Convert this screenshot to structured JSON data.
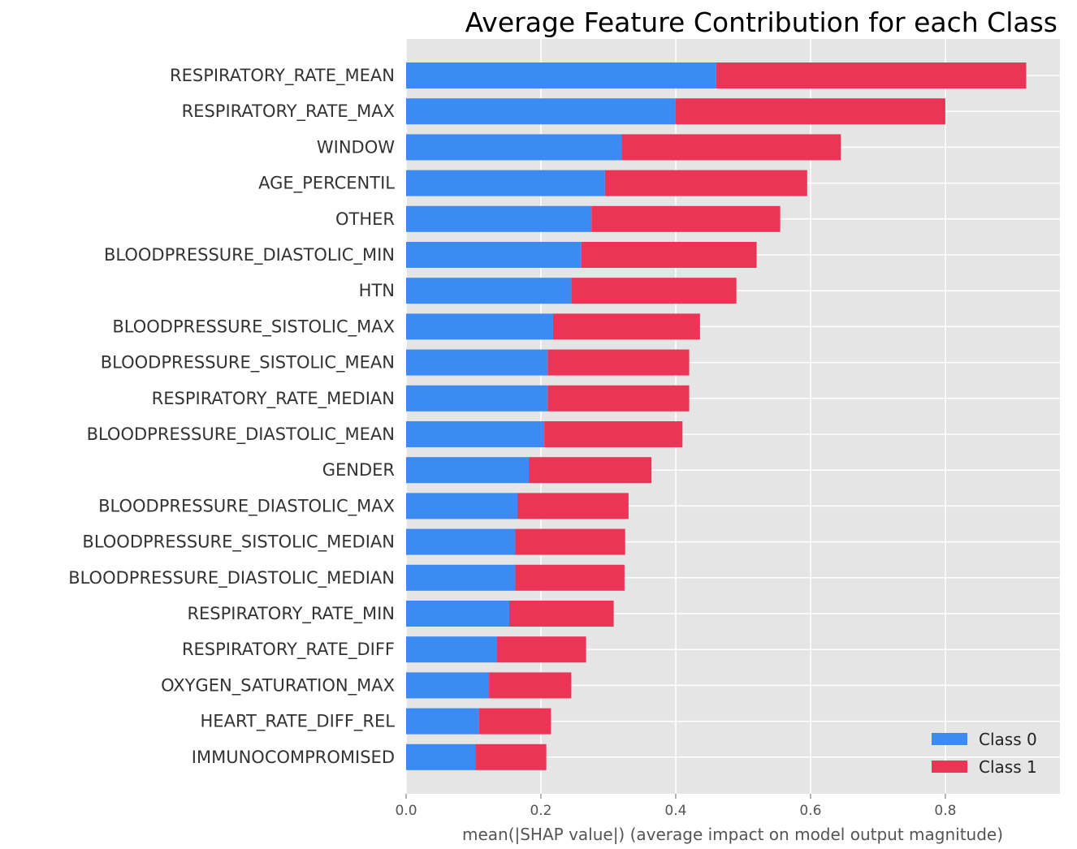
{
  "chart_data": {
    "type": "bar",
    "stacked": true,
    "orientation": "horizontal",
    "title": "Average Feature Contribution for each Class",
    "xlabel": "mean(|SHAP value|) (average impact on model output magnitude)",
    "ylabel": "",
    "xlim": [
      0,
      0.97
    ],
    "xticks": [
      "0.0",
      "0.2",
      "0.4",
      "0.6",
      "0.8"
    ],
    "grid": true,
    "legend_position": "lower-right",
    "categories": [
      "RESPIRATORY_RATE_MEAN",
      "RESPIRATORY_RATE_MAX",
      "WINDOW",
      "AGE_PERCENTIL",
      "OTHER",
      "BLOODPRESSURE_DIASTOLIC_MIN",
      "HTN",
      "BLOODPRESSURE_SISTOLIC_MAX",
      "BLOODPRESSURE_SISTOLIC_MEAN",
      "RESPIRATORY_RATE_MEDIAN",
      "BLOODPRESSURE_DIASTOLIC_MEAN",
      "GENDER",
      "BLOODPRESSURE_DIASTOLIC_MAX",
      "BLOODPRESSURE_SISTOLIC_MEDIAN",
      "BLOODPRESSURE_DIASTOLIC_MEDIAN",
      "RESPIRATORY_RATE_MIN",
      "RESPIRATORY_RATE_DIFF",
      "OXYGEN_SATURATION_MAX",
      "HEART_RATE_DIFF_REL",
      "IMMUNOCOMPROMISED"
    ],
    "series": [
      {
        "name": "Class 0",
        "color": "#3b8bf2",
        "values": [
          0.46,
          0.4,
          0.32,
          0.295,
          0.275,
          0.26,
          0.245,
          0.218,
          0.21,
          0.21,
          0.205,
          0.182,
          0.165,
          0.162,
          0.162,
          0.153,
          0.134,
          0.123,
          0.108,
          0.103
        ]
      },
      {
        "name": "Class 1",
        "color": "#ea3556",
        "values": [
          0.46,
          0.4,
          0.325,
          0.3,
          0.28,
          0.26,
          0.245,
          0.218,
          0.21,
          0.21,
          0.205,
          0.182,
          0.165,
          0.163,
          0.162,
          0.155,
          0.133,
          0.122,
          0.107,
          0.105
        ]
      }
    ]
  }
}
